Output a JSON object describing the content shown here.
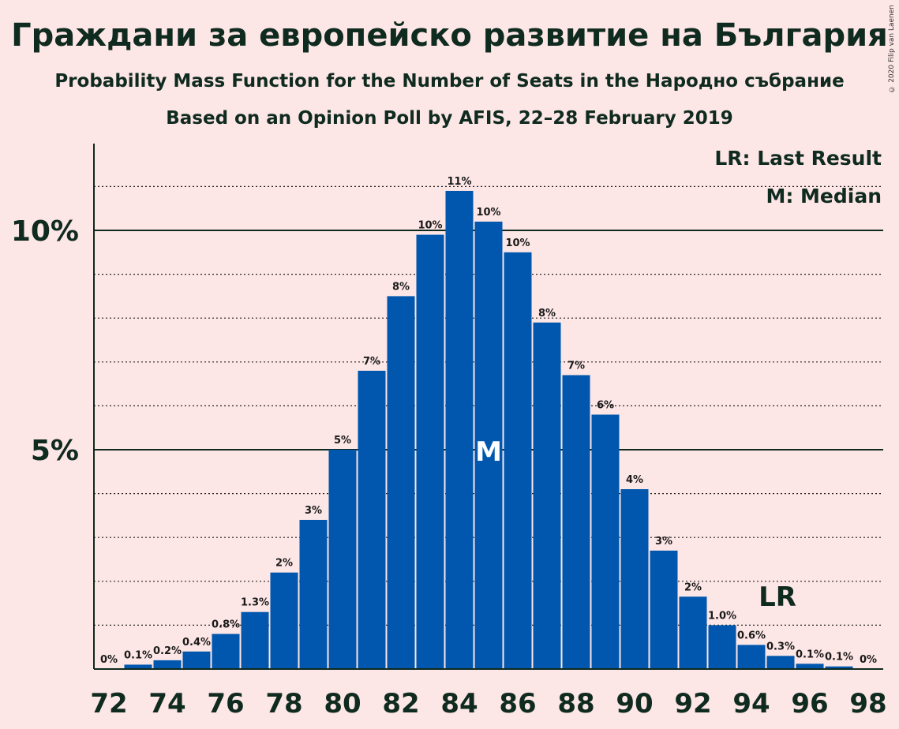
{
  "title": "Граждани за европейско развитие на България",
  "subtitle": "Probability Mass Function for the Number of Seats in the Народно събрание",
  "subtitle2": "Based on an Opinion Poll by AFIS, 22–28 February 2019",
  "copyright": "© 2020 Filip van Laenen",
  "legend": {
    "last_result": "LR: Last Result",
    "median": "M: Median"
  },
  "colors": {
    "bar": "#0057ad",
    "background": "#fde6e6",
    "text": "#0f2a1f"
  },
  "chart_data": {
    "type": "bar",
    "x": [
      72,
      73,
      74,
      75,
      76,
      77,
      78,
      79,
      80,
      81,
      82,
      83,
      84,
      85,
      86,
      87,
      88,
      89,
      90,
      91,
      92,
      93,
      94,
      95,
      96,
      97,
      98
    ],
    "values": [
      0,
      0.1,
      0.2,
      0.4,
      0.8,
      1.3,
      2.2,
      3.4,
      5.0,
      6.8,
      8.5,
      9.9,
      10.9,
      10.2,
      9.5,
      7.9,
      6.7,
      5.8,
      4.1,
      2.7,
      1.65,
      1.0,
      0.55,
      0.3,
      0.12,
      0.06,
      0
    ],
    "labels": [
      "0%",
      "0.1%",
      "0.2%",
      "0.4%",
      "0.8%",
      "1.3%",
      "2%",
      "3%",
      "5%",
      "7%",
      "8%",
      "10%",
      "11%",
      "10%",
      "10%",
      "8%",
      "7%",
      "6%",
      "4%",
      "3%",
      "2%",
      "1.0%",
      "0.6%",
      "0.3%",
      "0.1%",
      "0.1%",
      "0%"
    ],
    "x_ticks": [
      72,
      74,
      76,
      78,
      80,
      82,
      84,
      86,
      88,
      90,
      92,
      94,
      96,
      98
    ],
    "y_ticks": [
      {
        "value": 5,
        "label": "5%"
      },
      {
        "value": 10,
        "label": "10%"
      }
    ],
    "ylim": [
      0,
      12
    ],
    "median_seat": 85,
    "median_marker": "M",
    "last_result_seat": 95,
    "last_result_marker": "LR",
    "unit": "%"
  }
}
